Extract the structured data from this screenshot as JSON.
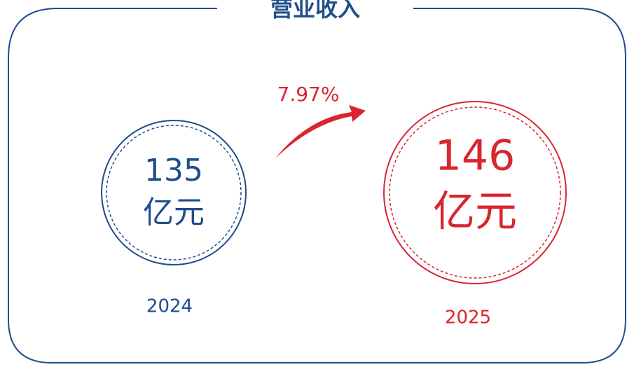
{
  "title": "营业收入",
  "growth": "7.97%",
  "items": [
    {
      "value": "135",
      "unit": "亿元",
      "year": "2024"
    },
    {
      "value": "146",
      "unit": "亿元",
      "year": "2025"
    }
  ]
}
